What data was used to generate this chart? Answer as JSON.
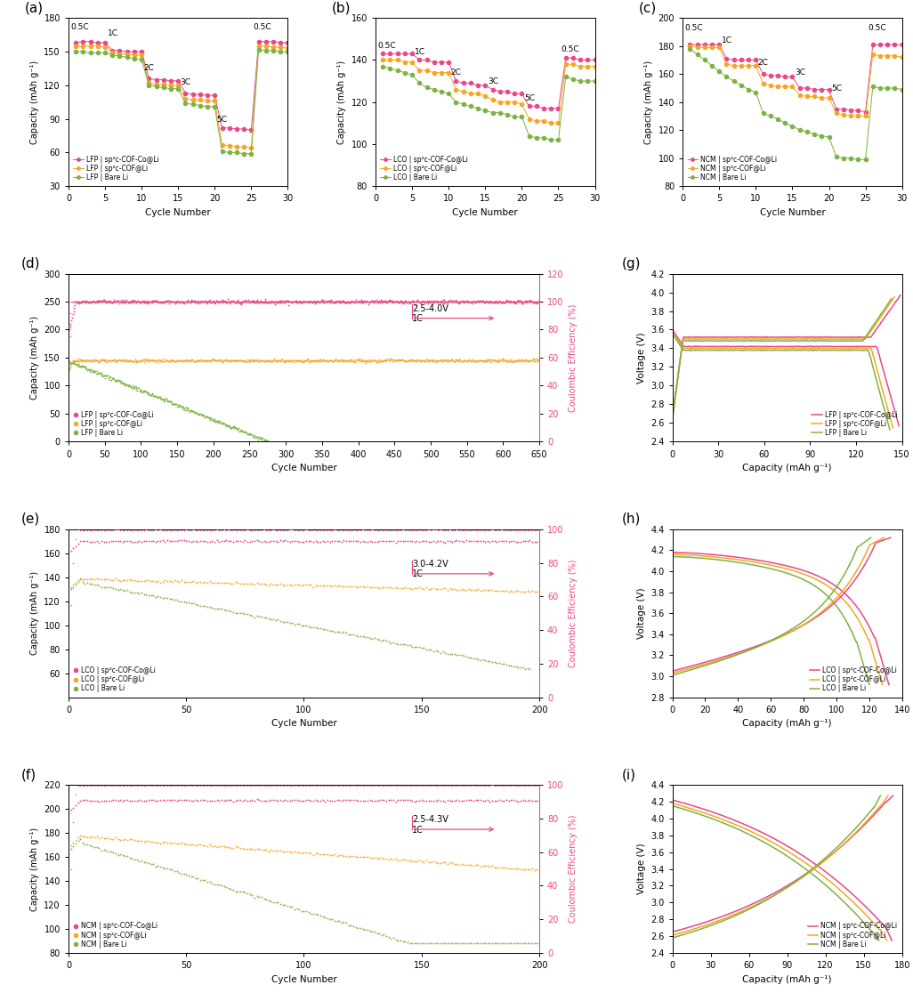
{
  "colors": {
    "pink": "#E8488A",
    "orange": "#F5A623",
    "green": "#7CB342"
  },
  "panel_a": {
    "xlabel": "Cycle Number",
    "ylabel": "Capacity (mAh g⁻¹)",
    "ylim": [
      30,
      180
    ],
    "yticks": [
      30,
      60,
      90,
      120,
      150,
      180
    ],
    "xlim": [
      0,
      30
    ],
    "xticks": [
      0,
      5,
      10,
      15,
      20,
      25,
      30
    ],
    "rate_labels": [
      "0.5C",
      "1C",
      "2C",
      "3C",
      "5C",
      "0.5C"
    ],
    "rate_x": [
      0.3,
      5.3,
      10.3,
      15.3,
      20.3,
      25.3
    ],
    "rate_y": [
      168,
      163,
      132,
      119,
      86,
      168
    ],
    "series": {
      "pink": [
        158,
        159,
        159,
        158,
        158,
        151,
        151,
        150,
        150,
        150,
        126,
        125,
        125,
        124,
        124,
        113,
        112,
        112,
        111,
        111,
        82,
        82,
        81,
        81,
        80,
        159,
        159,
        159,
        158,
        158
      ],
      "orange": [
        155,
        155,
        155,
        155,
        154,
        149,
        148,
        148,
        147,
        147,
        122,
        121,
        121,
        120,
        120,
        108,
        107,
        107,
        106,
        106,
        67,
        66,
        65,
        65,
        64,
        155,
        155,
        154,
        154,
        153
      ],
      "green": [
        150,
        150,
        149,
        149,
        149,
        147,
        146,
        145,
        144,
        143,
        120,
        119,
        118,
        117,
        117,
        104,
        103,
        102,
        101,
        101,
        61,
        60,
        60,
        59,
        59,
        152,
        151,
        151,
        150,
        150
      ]
    },
    "legend": [
      "LFP | sp²c-COF-Co@Li",
      "LFP | sp²c-COF@Li",
      "LFP | Bare Li"
    ]
  },
  "panel_b": {
    "xlabel": "Cycle Number",
    "ylabel": "Capacity (mAh g⁻¹)",
    "ylim": [
      80,
      160
    ],
    "yticks": [
      80,
      100,
      120,
      140,
      160
    ],
    "xlim": [
      0,
      30
    ],
    "xticks": [
      0,
      5,
      10,
      15,
      20,
      25,
      30
    ],
    "rate_labels": [
      "0.5C",
      "1C",
      "2C",
      "3C",
      "5C",
      "0.5C"
    ],
    "rate_x": [
      0.3,
      5.3,
      10.3,
      15.3,
      20.3,
      25.3
    ],
    "rate_y": [
      145,
      142,
      132,
      128,
      120,
      143
    ],
    "series": {
      "pink": [
        143,
        143,
        143,
        143,
        143,
        140,
        140,
        139,
        139,
        139,
        130,
        129,
        129,
        128,
        128,
        126,
        125,
        125,
        124,
        124,
        118,
        118,
        117,
        117,
        117,
        141,
        141,
        140,
        140,
        140
      ],
      "orange": [
        140,
        140,
        140,
        139,
        139,
        135,
        135,
        134,
        134,
        134,
        126,
        125,
        124,
        124,
        123,
        121,
        120,
        120,
        120,
        119,
        112,
        111,
        111,
        110,
        110,
        138,
        138,
        137,
        137,
        137
      ],
      "green": [
        137,
        136,
        135,
        134,
        133,
        129,
        127,
        126,
        125,
        124,
        120,
        119,
        118,
        117,
        116,
        115,
        115,
        114,
        113,
        113,
        104,
        103,
        103,
        102,
        102,
        132,
        131,
        130,
        130,
        130
      ]
    },
    "legend": [
      "LCO | sp²c-COF-Co@Li",
      "LCO | sp²c-COF@Li",
      "LCO | Bare Li"
    ]
  },
  "panel_c": {
    "xlabel": "Cycle Number",
    "ylabel": "Capacity (mAh g⁻¹)",
    "ylim": [
      80,
      200
    ],
    "yticks": [
      80,
      100,
      120,
      140,
      160,
      180,
      200
    ],
    "xlim": [
      0,
      30
    ],
    "xticks": [
      0,
      5,
      10,
      15,
      20,
      25,
      30
    ],
    "rate_labels": [
      "0.5C",
      "1C",
      "2C",
      "3C",
      "5C",
      "0.5C"
    ],
    "rate_x": [
      0.3,
      5.3,
      10.3,
      15.3,
      20.3,
      25.3
    ],
    "rate_y": [
      190,
      181,
      165,
      158,
      147,
      190
    ],
    "series": {
      "pink": [
        181,
        181,
        181,
        181,
        181,
        171,
        170,
        170,
        170,
        170,
        160,
        159,
        159,
        158,
        158,
        150,
        150,
        149,
        149,
        149,
        135,
        135,
        134,
        134,
        133,
        181,
        181,
        181,
        181,
        181
      ],
      "orange": [
        180,
        179,
        179,
        179,
        179,
        167,
        166,
        166,
        166,
        166,
        153,
        152,
        151,
        151,
        151,
        145,
        144,
        144,
        143,
        143,
        132,
        131,
        130,
        130,
        130,
        174,
        173,
        173,
        173,
        172
      ],
      "green": [
        178,
        174,
        170,
        166,
        162,
        158,
        155,
        152,
        149,
        147,
        132,
        130,
        128,
        125,
        123,
        120,
        119,
        117,
        116,
        115,
        101,
        100,
        100,
        99,
        99,
        151,
        150,
        150,
        150,
        149
      ]
    },
    "legend": [
      "NCM | sp²c-COF-Co@Li",
      "NCM | sp²c-COF@Li",
      "NCM | Bare Li"
    ]
  },
  "panel_d": {
    "xlabel": "Cycle Number",
    "ylabel": "Capacity (mAh g⁻¹)",
    "ylabel2": "Coulombic Efficiency (%)",
    "ylim": [
      0,
      300
    ],
    "yticks": [
      0,
      50,
      100,
      150,
      200,
      250,
      300
    ],
    "ylim2": [
      0,
      120
    ],
    "yticks2": [
      0,
      20,
      40,
      60,
      80,
      100,
      120
    ],
    "xlim": [
      0,
      650
    ],
    "xticks": [
      0,
      50,
      100,
      150,
      200,
      250,
      300,
      350,
      400,
      450,
      500,
      550,
      600,
      650
    ],
    "annotation": "2.5-4.0V\n1C",
    "legend": [
      "LFP | sp²c-COF-Co@Li",
      "LFP | sp²c-COF@Li",
      "LFP | Bare Li"
    ]
  },
  "panel_e": {
    "xlabel": "Cycle Number",
    "ylabel": "Capacity (mAh g⁻¹)",
    "ylabel2": "Coulombic Efficiency (%)",
    "ylim": [
      40,
      180
    ],
    "yticks": [
      60,
      80,
      100,
      120,
      140,
      160,
      180
    ],
    "ylim2": [
      0,
      100
    ],
    "yticks2": [
      0,
      20,
      40,
      60,
      80,
      100
    ],
    "xlim": [
      0,
      200
    ],
    "xticks": [
      0,
      50,
      100,
      150,
      200
    ],
    "annotation": "3.0-4.2V\n1C",
    "legend": [
      "LCO | sp²c-COF-Co@Li",
      "LCO | sp²c-COF@Li",
      "LCO | Bare Li"
    ]
  },
  "panel_f": {
    "xlabel": "Cycle Number",
    "ylabel": "Capacity (mAh g⁻¹)",
    "ylabel2": "Coulombic Efficiency (%)",
    "ylim": [
      80,
      220
    ],
    "yticks": [
      80,
      100,
      120,
      140,
      160,
      180,
      200,
      220
    ],
    "ylim2": [
      0,
      100
    ],
    "yticks2": [
      0,
      20,
      40,
      60,
      80,
      100
    ],
    "xlim": [
      0,
      200
    ],
    "xticks": [
      0,
      50,
      100,
      150,
      200
    ],
    "annotation": "2.5-4.3V\n1C",
    "legend": [
      "NCM | sp²c-COF-Co@Li",
      "NCM | sp²c-COF@Li",
      "NCM | Bare Li"
    ]
  },
  "panel_g": {
    "xlabel": "Capacity (mAh g⁻¹)",
    "ylabel": "Voltage (V)",
    "xlim": [
      0,
      150
    ],
    "xticks": [
      0,
      30,
      60,
      90,
      120,
      150
    ],
    "ylim": [
      2.4,
      4.2
    ],
    "yticks": [
      2.4,
      2.6,
      2.8,
      3.0,
      3.2,
      3.4,
      3.6,
      3.8,
      4.0,
      4.2
    ],
    "legend": [
      "LFP | sp²c-COF-Co@Li",
      "LFP | sp²c-COF@Li",
      "LFP | Bare Li"
    ]
  },
  "panel_h": {
    "xlabel": "Capacity (mAh g⁻¹)",
    "ylabel": "Voltage (V)",
    "xlim": [
      0,
      140
    ],
    "xticks": [
      0,
      20,
      40,
      60,
      80,
      100,
      120,
      140
    ],
    "ylim": [
      2.8,
      4.4
    ],
    "yticks": [
      2.8,
      3.0,
      3.2,
      3.4,
      3.6,
      3.8,
      4.0,
      4.2,
      4.4
    ],
    "legend": [
      "LCO | sp²c-COF-Co@Li",
      "LCO | sp²c-COF@Li",
      "LCO | Bare Li"
    ]
  },
  "panel_i": {
    "xlabel": "Capacity (mAh g⁻¹)",
    "ylabel": "Voltage (V)",
    "xlim": [
      0,
      180
    ],
    "xticks": [
      0,
      30,
      60,
      90,
      120,
      150,
      180
    ],
    "ylim": [
      2.4,
      4.4
    ],
    "yticks": [
      2.4,
      2.6,
      2.8,
      3.0,
      3.2,
      3.4,
      3.6,
      3.8,
      4.0,
      4.2,
      4.4
    ],
    "legend": [
      "NCM | sp²c-COF-Co@Li",
      "NCM | sp²c-COF@Li",
      "NCM | Bare Li"
    ]
  }
}
